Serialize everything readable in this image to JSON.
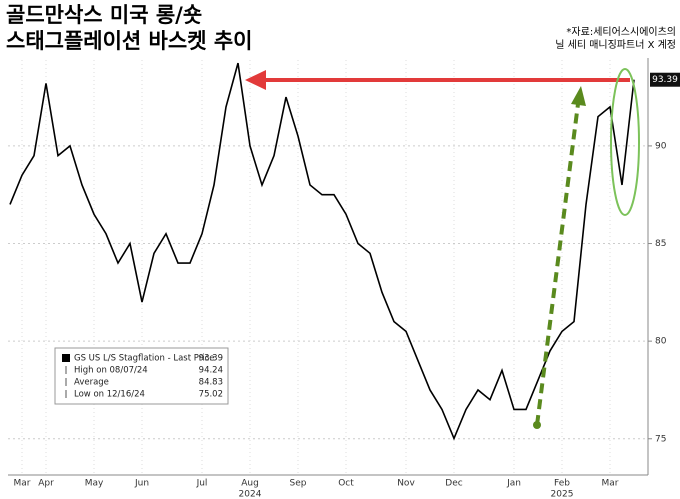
{
  "chart_data": {
    "type": "line",
    "title": [
      "골드만삭스 미국 롱/숏",
      "스태그플레이션 바스켓 추이"
    ],
    "source": [
      "*자료:세티어스시에이츠의",
      "닐 세티 매니징파트너 X 계정"
    ],
    "categories": [
      null,
      "Mar",
      null,
      "Apr",
      null,
      null,
      null,
      "May",
      null,
      null,
      null,
      "Jun",
      null,
      null,
      null,
      null,
      "Jul",
      null,
      null,
      null,
      "Aug",
      null,
      null,
      null,
      "Sep",
      null,
      null,
      null,
      "Oct",
      null,
      null,
      null,
      null,
      "Nov",
      null,
      null,
      null,
      "Dec",
      null,
      null,
      null,
      null,
      "Jan",
      null,
      null,
      null,
      "Feb",
      null,
      null,
      null,
      "Mar",
      null,
      null
    ],
    "year_categories": [
      null,
      null,
      null,
      null,
      null,
      null,
      null,
      null,
      null,
      null,
      null,
      null,
      null,
      null,
      null,
      null,
      null,
      null,
      null,
      null,
      "2024",
      null,
      null,
      null,
      null,
      null,
      null,
      null,
      null,
      null,
      null,
      null,
      null,
      null,
      null,
      null,
      null,
      null,
      null,
      null,
      null,
      null,
      null,
      null,
      null,
      null,
      "2025",
      null,
      null,
      null,
      null,
      null,
      null
    ],
    "series": [
      {
        "name": "GS US L/S Stagflation",
        "color": "#000000",
        "values": [
          87,
          88.5,
          89.5,
          93.2,
          89.5,
          90,
          88,
          86.5,
          85.5,
          84,
          85,
          82,
          84.5,
          85.5,
          84,
          84,
          85.5,
          88,
          92,
          94.24,
          90,
          88,
          89.5,
          92.5,
          90.5,
          88,
          87.5,
          87.5,
          86.5,
          85,
          84.5,
          82.5,
          81,
          80.5,
          79,
          77.5,
          76.5,
          75.02,
          76.5,
          77.5,
          77,
          78.5,
          76.5,
          76.5,
          78,
          79.5,
          80.5,
          81,
          87,
          91.5,
          92,
          88,
          93.39
        ]
      }
    ],
    "legend": {
      "rows": [
        [
          "GS US L/S Stagflation - Last Price",
          93.39
        ],
        [
          "High on 08/07/24",
          94.24
        ],
        [
          "Average",
          84.83
        ],
        [
          "Low on 12/16/24",
          75.02
        ]
      ]
    },
    "ylim": [
      73.4,
      94.4
    ],
    "yticks": [
      75,
      80,
      85,
      90
    ],
    "grid": true
  }
}
